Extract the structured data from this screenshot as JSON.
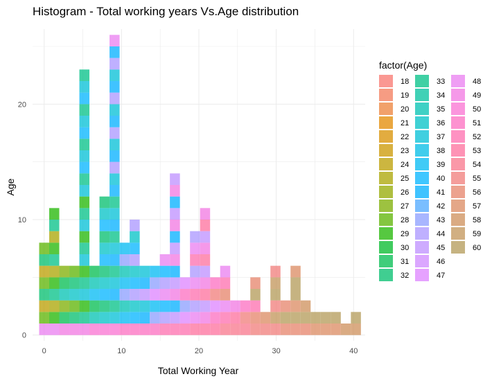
{
  "chart_data": {
    "type": "bar",
    "title": "Histogram - Total working years Vs.Age distribution",
    "xlabel": "Total Working Year",
    "ylabel": "Age",
    "xlim": [
      -1.5,
      41.5
    ],
    "ylim": [
      -0.5,
      26.5
    ],
    "x_ticks": [
      0,
      10,
      20,
      30,
      40
    ],
    "y_ticks": [
      0,
      10,
      20
    ],
    "grid": true,
    "stacked": true,
    "bin_width": 1.3,
    "legend_title": "factor(Age)",
    "legend_position": "right",
    "ages": [
      18,
      19,
      20,
      21,
      22,
      23,
      24,
      25,
      26,
      27,
      28,
      29,
      30,
      31,
      32,
      33,
      34,
      35,
      36,
      37,
      38,
      39,
      40,
      41,
      42,
      43,
      44,
      45,
      46,
      47,
      48,
      49,
      50,
      51,
      52,
      53,
      54,
      55,
      56,
      57,
      58,
      59,
      60
    ],
    "colors": [
      "#F8766D",
      "#F37B59",
      "#EC8239",
      "#E38900",
      "#D89000",
      "#CB9700",
      "#BB9D00",
      "#A9A400",
      "#94AA00",
      "#7CAE00",
      "#5BB300",
      "#1EB600",
      "#00B92A",
      "#00BC4F",
      "#00BE6C",
      "#00C085",
      "#00C19D",
      "#00C1B1",
      "#00C1C5",
      "#00BFD6",
      "#00BCE6",
      "#00B9F3",
      "#00B4FF",
      "#00AFFF",
      "#4DA8FF",
      "#8B9EFF",
      "#A996FF",
      "#BE8FFF",
      "#CF89FF",
      "#DD83FF",
      "#E97EF0",
      "#F277E1",
      "#F972D1",
      "#FC6EC0",
      "#FE6DAE",
      "#FD6F9C",
      "#F8768B",
      "#F07C7A",
      "#E6836A",
      "#DB8960",
      "#CE8F5A",
      "#C19458",
      "#B39A57"
    ],
    "bars": [
      {
        "x": 0,
        "total": 8
      },
      {
        "x": 1.3,
        "total": 11
      },
      {
        "x": 2.6,
        "total": 6
      },
      {
        "x": 3.9,
        "total": 6
      },
      {
        "x": 5.2,
        "total": 23
      },
      {
        "x": 6.5,
        "total": 6
      },
      {
        "x": 7.8,
        "total": 12
      },
      {
        "x": 9.1,
        "total": 26
      },
      {
        "x": 10.4,
        "total": 8
      },
      {
        "x": 11.7,
        "total": 10
      },
      {
        "x": 13.0,
        "total": 6
      },
      {
        "x": 14.3,
        "total": 6
      },
      {
        "x": 15.6,
        "total": 7
      },
      {
        "x": 16.9,
        "total": 14
      },
      {
        "x": 18.2,
        "total": 5
      },
      {
        "x": 19.5,
        "total": 9
      },
      {
        "x": 20.8,
        "total": 11
      },
      {
        "x": 22.1,
        "total": 5
      },
      {
        "x": 23.4,
        "total": 6
      },
      {
        "x": 24.7,
        "total": 3
      },
      {
        "x": 26.0,
        "total": 3
      },
      {
        "x": 27.3,
        "total": 5
      },
      {
        "x": 28.6,
        "total": 2
      },
      {
        "x": 29.9,
        "total": 6
      },
      {
        "x": 31.2,
        "total": 3
      },
      {
        "x": 32.5,
        "total": 6
      },
      {
        "x": 33.8,
        "total": 3
      },
      {
        "x": 35.1,
        "total": 2
      },
      {
        "x": 36.4,
        "total": 2
      },
      {
        "x": 37.7,
        "total": 2
      },
      {
        "x": 39.0,
        "total": 1
      },
      {
        "x": 40.3,
        "total": 2
      }
    ]
  }
}
